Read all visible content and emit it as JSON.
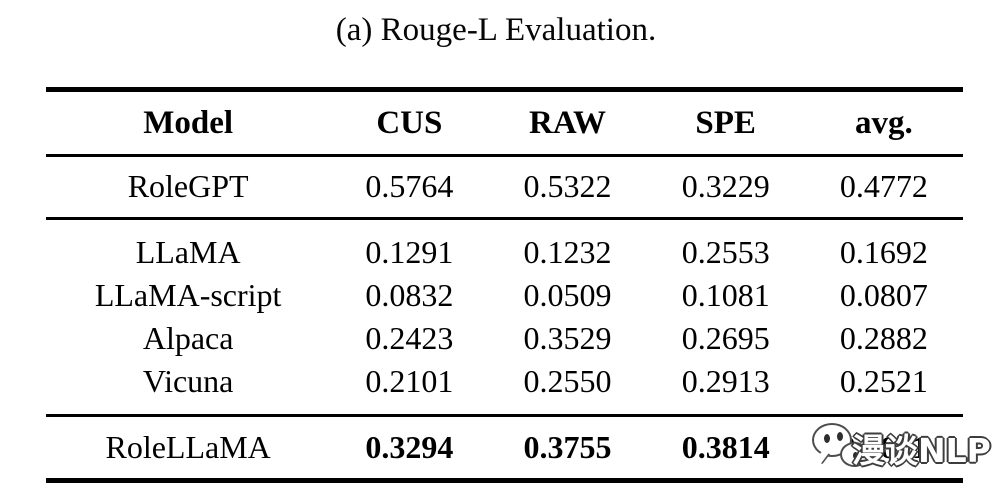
{
  "caption": "(a) Rouge-L Evaluation.",
  "table": {
    "headers": {
      "model": "Model",
      "cus": "CUS",
      "raw": "RAW",
      "spe": "SPE",
      "avg": "avg."
    },
    "rolegpt": {
      "model": "RoleGPT",
      "cus": "0.5764",
      "raw": "0.5322",
      "spe": "0.3229",
      "avg": "0.4772"
    },
    "baselines": [
      {
        "model": "LLaMA",
        "cus": "0.1291",
        "raw": "0.1232",
        "spe": "0.2553",
        "avg": "0.1692"
      },
      {
        "model": "LLaMA-script",
        "cus": "0.0832",
        "raw": "0.0509",
        "spe": "0.1081",
        "avg": "0.0807"
      },
      {
        "model": "Alpaca",
        "cus": "0.2423",
        "raw": "0.3529",
        "spe": "0.2695",
        "avg": "0.2882"
      },
      {
        "model": "Vicuna",
        "cus": "0.2101",
        "raw": "0.2550",
        "spe": "0.2913",
        "avg": "0.2521"
      }
    ],
    "rolellama": {
      "model": "RoleLLaMA",
      "cus": "0.3294",
      "raw": "0.3755",
      "spe": "0.3814",
      "avg": "0.3621"
    }
  },
  "watermark": {
    "text": "漫谈NLP",
    "icon": "chat-bubbles-icon"
  },
  "colors": {
    "background": "#ffffff",
    "text": "#000000",
    "rule": "#000000",
    "watermark_fill": "#ffffff",
    "watermark_outline": "#3d3d3d"
  }
}
